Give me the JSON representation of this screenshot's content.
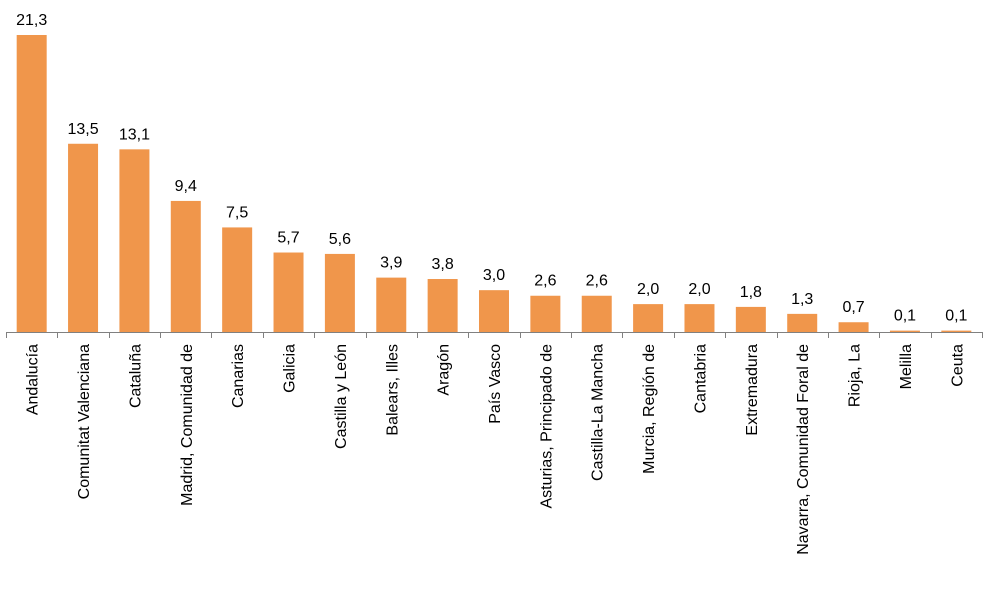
{
  "chart_data": {
    "type": "bar",
    "title": "",
    "xlabel": "",
    "ylabel": "",
    "ylim": [
      0,
      21.3
    ],
    "grid": false,
    "legend": "none",
    "bar_color": "#f0964b",
    "categories": [
      "Andalucía",
      "Comunitat Valenciana",
      "Cataluña",
      "Madrid, Comunidad de",
      "Canarias",
      "Galicia",
      "Castilla y León",
      "Balears, Illes",
      "Aragón",
      "País Vasco",
      "Asturias, Principado de",
      "Castilla-La Mancha",
      "Murcia, Región de",
      "Cantabria",
      "Extremadura",
      "Navarra, Comunidad Foral de",
      "Rioja, La",
      "Melilla",
      "Ceuta"
    ],
    "values": [
      21.3,
      13.5,
      13.1,
      9.4,
      7.5,
      5.7,
      5.6,
      3.9,
      3.8,
      3.0,
      2.6,
      2.6,
      2.0,
      2.0,
      1.8,
      1.3,
      0.7,
      0.1,
      0.1
    ],
    "value_labels": [
      "21,3",
      "13,5",
      "13,1",
      "9,4",
      "7,5",
      "5,7",
      "5,6",
      "3,9",
      "3,8",
      "3,0",
      "2,6",
      "2,6",
      "2,0",
      "2,0",
      "1,8",
      "1,3",
      "0,7",
      "0,1",
      "0,1"
    ]
  }
}
